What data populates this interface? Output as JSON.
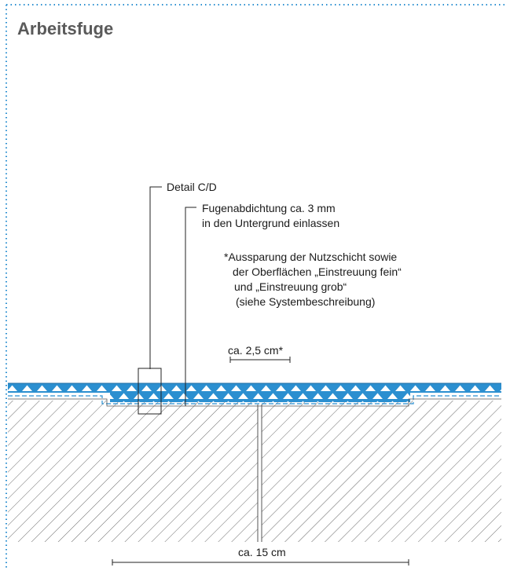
{
  "title": "Arbeitsfuge",
  "accent_color": "#2b8fd0",
  "labels": {
    "detail": "Detail C/D",
    "sealing_line1": "Fugenabdichtung ca. 3 mm",
    "sealing_line2": "in den Untergrund einlassen",
    "note_line1": "*Aussparung der Nutzschicht sowie",
    "note_line2": "der Oberflächen „Einstreuung fein“",
    "note_line3": "und „Einstreuung grob“",
    "note_line4": "(siehe Systembeschreibung)",
    "dim_small": "ca. 2,5 cm*",
    "dim_large": "ca. 15 cm"
  }
}
